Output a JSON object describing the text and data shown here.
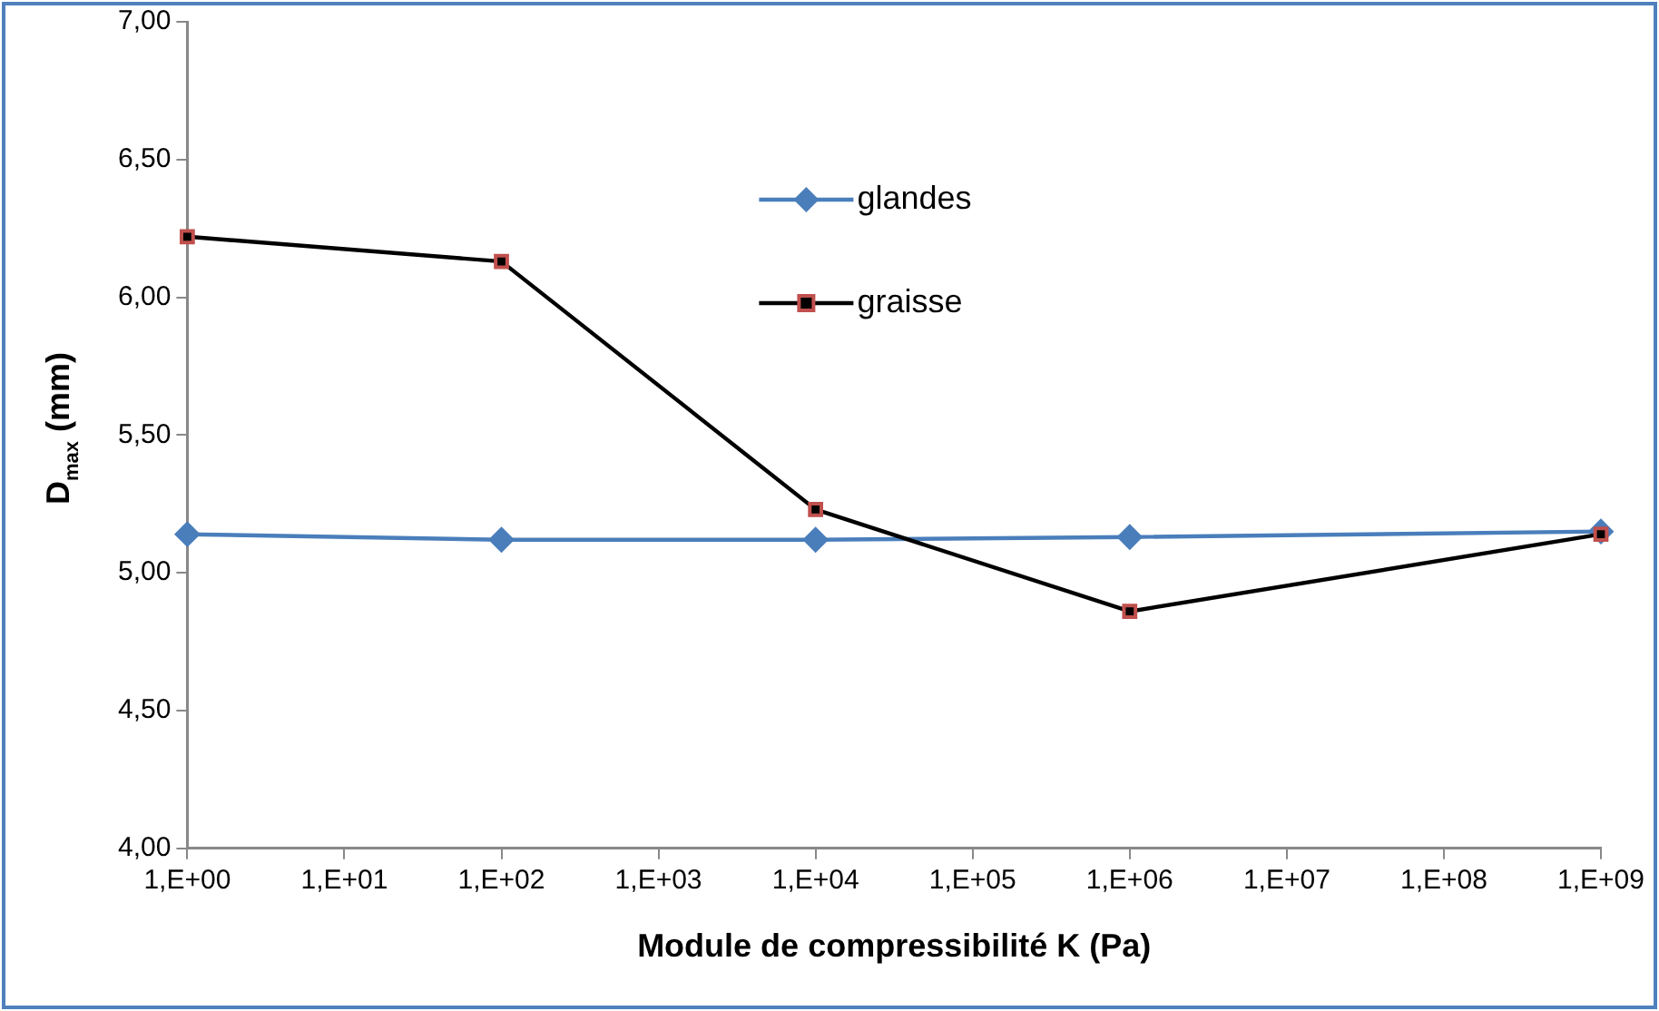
{
  "chart_data": {
    "type": "line",
    "xlabel": "Module de compressibilité K (Pa)",
    "ylabel": "D$_{max}$ (mm)",
    "categories": [
      "1,E+00",
      "1,E+01",
      "1,E+02",
      "1,E+03",
      "1,E+04",
      "1,E+05",
      "1,E+06",
      "1,E+07",
      "1,E+08",
      "1,E+09"
    ],
    "series": [
      {
        "name": "glandes",
        "color": "#4a7ebb",
        "marker": "diamond",
        "values": [
          5.14,
          null,
          5.12,
          null,
          5.12,
          null,
          5.13,
          null,
          null,
          5.15
        ]
      },
      {
        "name": "graisse",
        "color": "#000000",
        "marker": "square",
        "values": [
          6.22,
          null,
          6.13,
          null,
          5.23,
          null,
          4.86,
          null,
          null,
          5.14
        ]
      }
    ],
    "ylim": [
      4,
      7
    ],
    "yticks": [
      {
        "value": 4,
        "label": "4,00"
      },
      {
        "value": 4.5,
        "label": "4,50"
      },
      {
        "value": 5,
        "label": "5,00"
      },
      {
        "value": 5.5,
        "label": "5,50"
      },
      {
        "value": 6,
        "label": "6,00"
      },
      {
        "value": 6.5,
        "label": "6,50"
      },
      {
        "value": 7,
        "label": "7,00"
      }
    ],
    "grid": false,
    "legend": "top"
  }
}
